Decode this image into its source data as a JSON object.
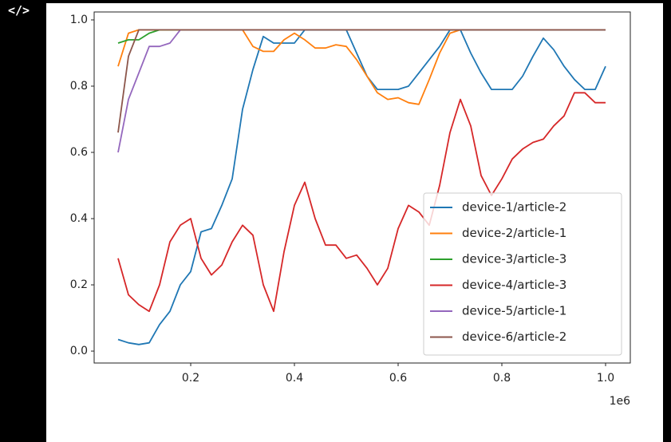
{
  "output_icon": "</>",
  "chart_data": {
    "type": "line",
    "x": [
      60000,
      80000,
      100000,
      120000,
      140000,
      160000,
      180000,
      200000,
      220000,
      240000,
      260000,
      280000,
      300000,
      320000,
      340000,
      360000,
      380000,
      400000,
      420000,
      440000,
      460000,
      480000,
      500000,
      520000,
      540000,
      560000,
      580000,
      600000,
      620000,
      640000,
      660000,
      680000,
      700000,
      720000,
      740000,
      760000,
      780000,
      800000,
      820000,
      840000,
      860000,
      880000,
      900000,
      920000,
      940000,
      960000,
      980000,
      1000000
    ],
    "series": [
      {
        "name": "device-1/article-2",
        "color": "#1f77b4",
        "values": [
          0.035,
          0.025,
          0.02,
          0.025,
          0.08,
          0.12,
          0.2,
          0.24,
          0.36,
          0.37,
          0.44,
          0.52,
          0.73,
          0.85,
          0.95,
          0.93,
          0.93,
          0.93,
          0.97,
          0.97,
          0.97,
          0.97,
          0.97,
          0.9,
          0.83,
          0.79,
          0.79,
          0.79,
          0.8,
          0.84,
          0.88,
          0.92,
          0.97,
          0.97,
          0.9,
          0.84,
          0.79,
          0.79,
          0.79,
          0.83,
          0.89,
          0.945,
          0.91,
          0.86,
          0.82,
          0.79,
          0.79,
          0.86
        ]
      },
      {
        "name": "device-2/article-1",
        "color": "#ff7f0e",
        "values": [
          0.86,
          0.96,
          0.97,
          0.97,
          0.97,
          0.97,
          0.97,
          0.97,
          0.97,
          0.97,
          0.97,
          0.97,
          0.97,
          0.92,
          0.905,
          0.905,
          0.94,
          0.96,
          0.94,
          0.915,
          0.915,
          0.925,
          0.92,
          0.88,
          0.83,
          0.78,
          0.76,
          0.765,
          0.75,
          0.745,
          0.82,
          0.9,
          0.96,
          0.97,
          0.97,
          0.97,
          0.97,
          0.97,
          0.97,
          0.97,
          0.97,
          0.97,
          0.97,
          0.97,
          0.97,
          0.97,
          0.97,
          0.97
        ]
      },
      {
        "name": "device-3/article-3",
        "color": "#2ca02c",
        "values": [
          0.93,
          0.94,
          0.94,
          0.96,
          0.97,
          0.97,
          0.97,
          0.97,
          0.97,
          0.97,
          0.97,
          0.97,
          0.97,
          0.97,
          0.97,
          0.97,
          0.97,
          0.97,
          0.97,
          0.97,
          0.97,
          0.97,
          0.97,
          0.97,
          0.97,
          0.97,
          0.97,
          0.97,
          0.97,
          0.97,
          0.97,
          0.97,
          0.97,
          0.97,
          0.97,
          0.97,
          0.97,
          0.97,
          0.97,
          0.97,
          0.97,
          0.97,
          0.97,
          0.97,
          0.97,
          0.97,
          0.97,
          0.97
        ]
      },
      {
        "name": "device-4/article-3",
        "color": "#d62728",
        "values": [
          0.28,
          0.17,
          0.14,
          0.12,
          0.2,
          0.33,
          0.38,
          0.4,
          0.28,
          0.23,
          0.26,
          0.33,
          0.38,
          0.35,
          0.2,
          0.12,
          0.3,
          0.44,
          0.51,
          0.4,
          0.32,
          0.32,
          0.28,
          0.29,
          0.25,
          0.2,
          0.25,
          0.37,
          0.44,
          0.42,
          0.38,
          0.5,
          0.66,
          0.76,
          0.68,
          0.53,
          0.47,
          0.52,
          0.58,
          0.61,
          0.63,
          0.64,
          0.68,
          0.71,
          0.78,
          0.78,
          0.75,
          0.75
        ]
      },
      {
        "name": "device-5/article-1",
        "color": "#9467bd",
        "values": [
          0.6,
          0.76,
          0.84,
          0.92,
          0.92,
          0.93,
          0.97,
          0.97,
          0.97,
          0.97,
          0.97,
          0.97,
          0.97,
          0.97,
          0.97,
          0.97,
          0.97,
          0.97,
          0.97,
          0.97,
          0.97,
          0.97,
          0.97,
          0.97,
          0.97,
          0.97,
          0.97,
          0.97,
          0.97,
          0.97,
          0.97,
          0.97,
          0.97,
          0.97,
          0.97,
          0.97,
          0.97,
          0.97,
          0.97,
          0.97,
          0.97,
          0.97,
          0.97,
          0.97,
          0.97,
          0.97,
          0.97,
          0.97
        ]
      },
      {
        "name": "device-6/article-2",
        "color": "#8c564b",
        "values": [
          0.66,
          0.89,
          0.97,
          0.97,
          0.97,
          0.97,
          0.97,
          0.97,
          0.97,
          0.97,
          0.97,
          0.97,
          0.97,
          0.97,
          0.97,
          0.97,
          0.97,
          0.97,
          0.97,
          0.97,
          0.97,
          0.97,
          0.97,
          0.97,
          0.97,
          0.97,
          0.97,
          0.97,
          0.97,
          0.97,
          0.97,
          0.97,
          0.97,
          0.97,
          0.97,
          0.97,
          0.97,
          0.97,
          0.97,
          0.97,
          0.97,
          0.97,
          0.97,
          0.97,
          0.97,
          0.97,
          0.97,
          0.97
        ]
      }
    ],
    "xlim": [
      13800,
      1047700
    ],
    "ylim": [
      -0.036,
      1.024
    ],
    "xticks": [
      {
        "value": 200000,
        "label": "0.2"
      },
      {
        "value": 400000,
        "label": "0.4"
      },
      {
        "value": 600000,
        "label": "0.6"
      },
      {
        "value": 800000,
        "label": "0.8"
      },
      {
        "value": 1000000,
        "label": "1.0"
      }
    ],
    "x_offset_label": "1e6",
    "yticks": [
      {
        "value": 0,
        "label": "0.0"
      },
      {
        "value": 0.2,
        "label": "0.2"
      },
      {
        "value": 0.4,
        "label": "0.4"
      },
      {
        "value": 0.6,
        "label": "0.6"
      },
      {
        "value": 0.8,
        "label": "0.8"
      },
      {
        "value": 1,
        "label": "1.0"
      }
    ],
    "grid": false,
    "legend": "lower right"
  }
}
